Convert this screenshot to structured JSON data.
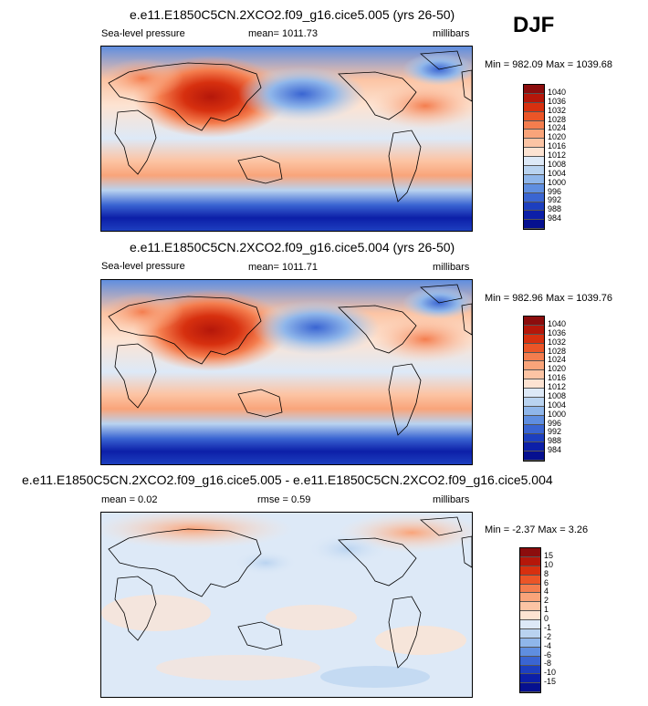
{
  "chart_data": [
    {
      "type": "heatmap",
      "title": "e.e11.E1850C5CN.2XCO2.f09_g16.cice5.005 (yrs 26-50)",
      "variable": "Sea-level pressure",
      "mean_label": "mean= 1011.73",
      "units": "millibars",
      "range_label": "Min = 982.09 Max = 1039.68",
      "colorbar_labels": [
        "1040",
        "1036",
        "1032",
        "1028",
        "1024",
        "1020",
        "1016",
        "1012",
        "1008",
        "1004",
        "1000",
        "996",
        "992",
        "988",
        "984"
      ],
      "colorbar_colors": [
        "#8c0d0d",
        "#b5170a",
        "#d7300f",
        "#eb5527",
        "#f47d4e",
        "#f9a47a",
        "#fcc4a4",
        "#fde3d2",
        "#dde9f7",
        "#b9d3f0",
        "#8fb6ea",
        "#5f8ee0",
        "#3a65d2",
        "#1d3fbf",
        "#0c1fa8",
        "#061090"
      ]
    },
    {
      "type": "heatmap",
      "title": "e.e11.E1850C5CN.2XCO2.f09_g16.cice5.004 (yrs 26-50)",
      "variable": "Sea-level pressure",
      "mean_label": "mean= 1011.71",
      "units": "millibars",
      "range_label": "Min = 982.96 Max = 1039.76",
      "colorbar_labels": [
        "1040",
        "1036",
        "1032",
        "1028",
        "1024",
        "1020",
        "1016",
        "1012",
        "1008",
        "1004",
        "1000",
        "996",
        "992",
        "988",
        "984"
      ],
      "colorbar_colors": [
        "#8c0d0d",
        "#b5170a",
        "#d7300f",
        "#eb5527",
        "#f47d4e",
        "#f9a47a",
        "#fcc4a4",
        "#fde3d2",
        "#dde9f7",
        "#b9d3f0",
        "#8fb6ea",
        "#5f8ee0",
        "#3a65d2",
        "#1d3fbf",
        "#0c1fa8",
        "#061090"
      ]
    },
    {
      "type": "heatmap",
      "title": "e.e11.E1850C5CN.2XCO2.f09_g16.cice5.005 - e.e11.E1850C5CN.2XCO2.f09_g16.cice5.004",
      "mean_label": "mean =  0.02",
      "rmse_label": "rmse =  0.59",
      "units": "millibars",
      "range_label": "Min =  -2.37 Max =  3.26",
      "colorbar_labels": [
        "15",
        "10",
        "8",
        "6",
        "4",
        "2",
        "1",
        "0",
        "-1",
        "-2",
        "-4",
        "-6",
        "-8",
        "-10",
        "-15"
      ],
      "colorbar_colors": [
        "#8c0d0d",
        "#b5170a",
        "#d7300f",
        "#eb5527",
        "#f47d4e",
        "#f9a47a",
        "#fcc4a4",
        "#fde3d2",
        "#dde9f7",
        "#b9d3f0",
        "#8fb6ea",
        "#5f8ee0",
        "#3a65d2",
        "#1d3fbf",
        "#0c1fa8",
        "#061090"
      ]
    }
  ],
  "season": "DJF"
}
